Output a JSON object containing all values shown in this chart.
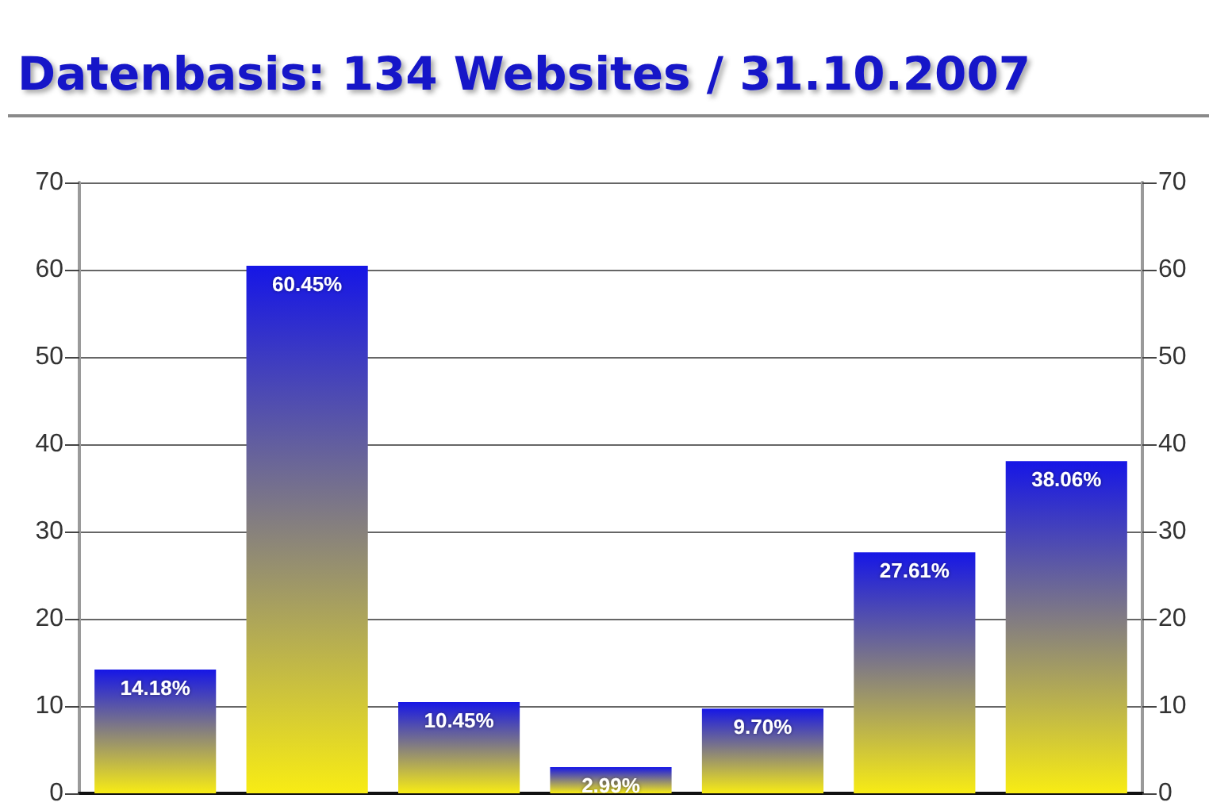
{
  "chart_data": {
    "type": "bar",
    "title": "Datenbasis: 134 Websites / 31.10.2007",
    "categories": [
      null,
      null,
      null,
      null,
      null,
      null,
      null
    ],
    "values": [
      14.18,
      60.45,
      10.45,
      2.99,
      9.7,
      27.61,
      38.06
    ],
    "color": "#1616e6",
    "value_labels": [
      "14.18%",
      "60.45%",
      "10.45%",
      "2.99%",
      "9.70%",
      "27.61%",
      "38.06%"
    ],
    "ylim": [
      0,
      70
    ],
    "yticks": [
      0,
      10,
      20,
      30,
      40,
      50,
      60,
      70
    ],
    "y2lim": [
      0,
      70
    ],
    "y2ticks": [
      0,
      10,
      20,
      30,
      40,
      50,
      60,
      70
    ],
    "grid": "y"
  }
}
